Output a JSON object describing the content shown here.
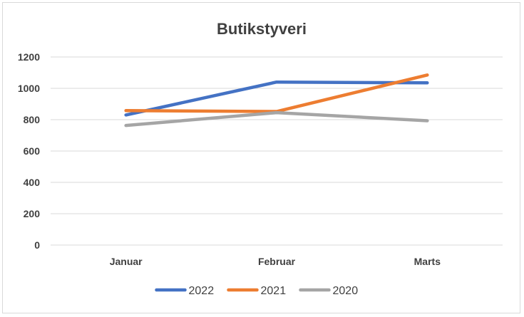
{
  "chart_data": {
    "type": "line",
    "title": "Butikstyveri",
    "xlabel": "",
    "ylabel": "",
    "categories": [
      "Januar",
      "Februar",
      "Marts"
    ],
    "ylim": [
      0,
      1200
    ],
    "yticks": [
      0,
      200,
      400,
      600,
      800,
      1000,
      1200
    ],
    "grid": true,
    "legend_position": "bottom",
    "series": [
      {
        "name": "2022",
        "color": "#4472c4",
        "values": [
          830,
          1040,
          1035
        ]
      },
      {
        "name": "2021",
        "color": "#ed7d31",
        "values": [
          858,
          852,
          1085
        ]
      },
      {
        "name": "2020",
        "color": "#a5a5a5",
        "values": [
          763,
          845,
          793
        ]
      }
    ]
  }
}
